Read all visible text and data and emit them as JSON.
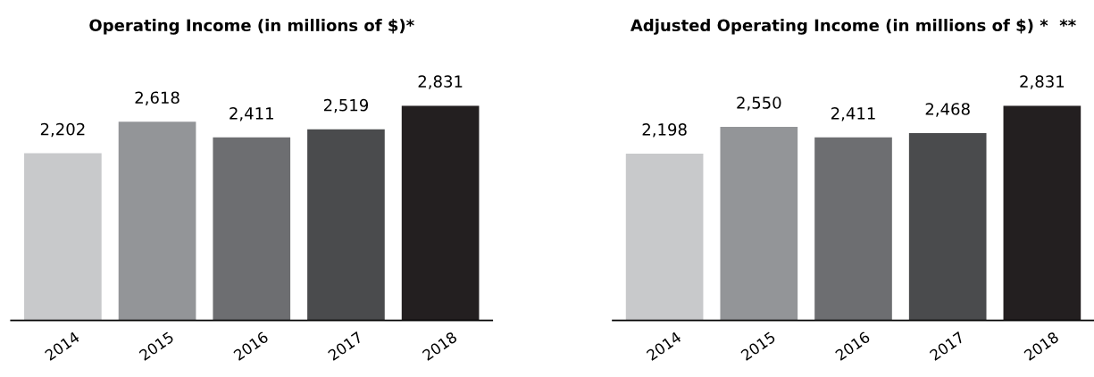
{
  "chart_data": [
    {
      "type": "bar",
      "title": "Operating Income (in millions of $)*",
      "categories": [
        "2014",
        "2015",
        "2016",
        "2017",
        "2018"
      ],
      "values": [
        2202,
        2618,
        2411,
        2519,
        2831
      ],
      "colors": [
        "#c8c9cb",
        "#939598",
        "#6d6e71",
        "#4a4b4d",
        "#231f20"
      ],
      "data_labels": true,
      "value_labels": [
        "2,202",
        "2,618",
        "2,411",
        "2,519",
        "2,831"
      ]
    },
    {
      "type": "bar",
      "title": "Adjusted Operating Income (in millions of $) *  **",
      "categories": [
        "2014",
        "2015",
        "2016",
        "2017",
        "2018"
      ],
      "values": [
        2198,
        2550,
        2411,
        2468,
        2831
      ],
      "colors": [
        "#c8c9cb",
        "#939598",
        "#6d6e71",
        "#4a4b4d",
        "#231f20"
      ],
      "data_labels": true,
      "value_labels": [
        "2,198",
        "2,550",
        "2,411",
        "2,468",
        "2,831"
      ]
    }
  ]
}
